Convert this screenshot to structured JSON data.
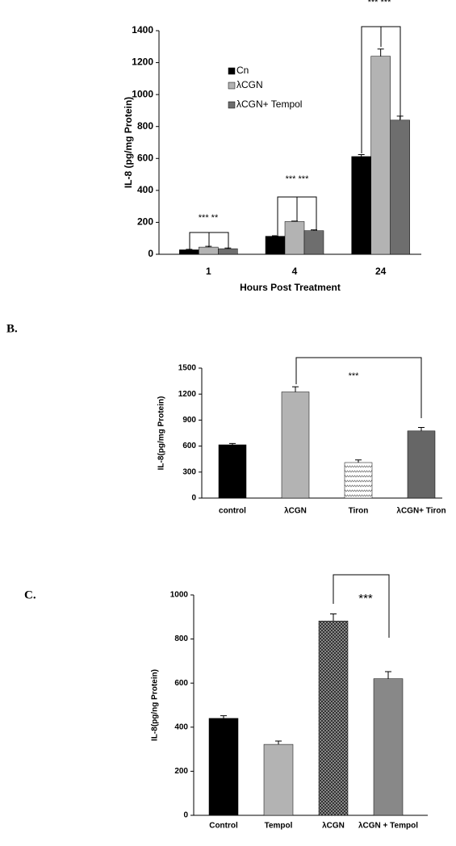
{
  "chart_data": [
    {
      "type": "bar",
      "ylabel": "IL-8 (pg/mg Protein)",
      "xlabel": "Hours Post Treatment",
      "categories": [
        "1",
        "4",
        "24"
      ],
      "series": [
        {
          "name": "Cn",
          "color": "#000000",
          "values": [
            28,
            113,
            612
          ],
          "errors": [
            3,
            3,
            12
          ]
        },
        {
          "name": "λCGN",
          "color": "#b3b3b3",
          "values": [
            45,
            205,
            1240
          ],
          "errors": [
            5,
            3,
            45
          ]
        },
        {
          "name": "λCGN+ Tempol",
          "color": "#6e6e6e",
          "values": [
            35,
            148,
            840
          ],
          "errors": [
            4,
            5,
            25
          ]
        }
      ],
      "ylim": [
        0,
        1400
      ],
      "yticks": [
        0,
        200,
        400,
        600,
        800,
        1000,
        1200,
        1400
      ],
      "annotations": [
        "***  ***",
        "***  ***",
        "***    **"
      ]
    },
    {
      "type": "bar",
      "panel_label": "B.",
      "ylabel": "IL-8(pg/mg Protein)",
      "categories": [
        "control",
        "λCGN",
        "Tiron",
        "λCGN+ Tiron"
      ],
      "values": [
        615,
        1225,
        410,
        775
      ],
      "errors": [
        15,
        60,
        30,
        40
      ],
      "colors": [
        "#000000",
        "#b3b3b3",
        "#ffffff",
        "#666666"
      ],
      "patterns": [
        "solid",
        "solid",
        "zigzag",
        "solid"
      ],
      "ylim": [
        0,
        1500
      ],
      "yticks": [
        0,
        300,
        600,
        900,
        1200,
        1500
      ],
      "annotations": [
        "***"
      ]
    },
    {
      "type": "bar",
      "panel_label": "C.",
      "ylabel": "IL-8(pg/ng Protein)",
      "categories": [
        "Control",
        "Tempol",
        "λCGN",
        "λCGN + Tempol"
      ],
      "values": [
        440,
        322,
        882,
        620
      ],
      "errors": [
        12,
        15,
        32,
        32
      ],
      "colors": [
        "#000000",
        "#b3b3b3",
        "#555555",
        "#888888"
      ],
      "patterns": [
        "solid",
        "solid",
        "checker",
        "solid"
      ],
      "ylim": [
        0,
        1000
      ],
      "yticks": [
        0,
        200,
        400,
        600,
        800,
        1000
      ],
      "annotations": [
        "***"
      ]
    }
  ]
}
